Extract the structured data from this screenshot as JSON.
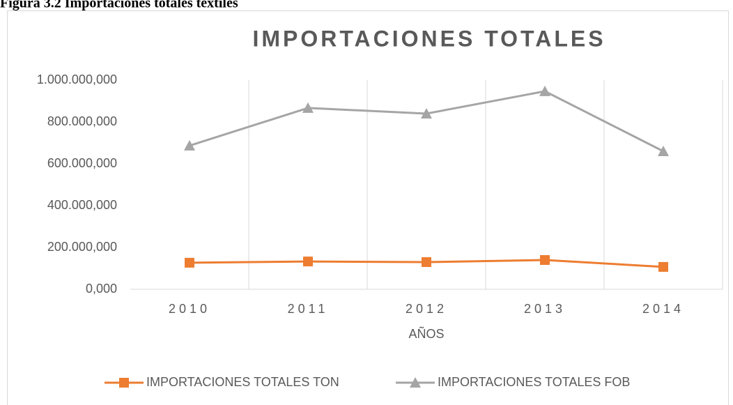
{
  "caption": "Figura 3.2 Importaciones  totales textiles",
  "chart_data": {
    "type": "line",
    "title": "IMPORTACIONES TOTALES",
    "x_label": "AÑOS",
    "categories": [
      "2010",
      "2011",
      "2012",
      "2013",
      "2014"
    ],
    "series": [
      {
        "name": "IMPORTACIONES TOTALES TON",
        "color": "#ed7d31",
        "marker": "square",
        "values": [
          127000000,
          133000000,
          130000000,
          140000000,
          107000000
        ]
      },
      {
        "name": "IMPORTACIONES TOTALES FOB",
        "color": "#a5a5a5",
        "marker": "triangle",
        "values": [
          687000000,
          867000000,
          840000000,
          947000000,
          660000000
        ]
      }
    ],
    "ylim": [
      0,
      1000000000
    ],
    "yticks": [
      {
        "value": 0,
        "label": "0,000"
      },
      {
        "value": 200000000,
        "label": "200.000,000"
      },
      {
        "value": 400000000,
        "label": "400.000,000"
      },
      {
        "value": 600000000,
        "label": "600.000,000"
      },
      {
        "value": 800000000,
        "label": "800.000,000"
      },
      {
        "value": 1000000000,
        "label": "1.000.000,000"
      }
    ],
    "grid": "vertical",
    "legend": "bottom"
  }
}
